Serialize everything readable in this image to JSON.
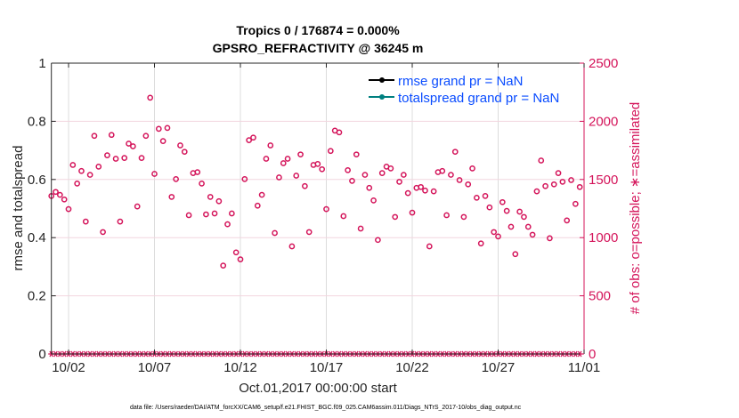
{
  "chart_data": {
    "type": "scatter",
    "title": [
      "Tropics 0 / 176874 = 0.000%",
      "GPSRO_REFRACTIVITY @ 36245 m"
    ],
    "xlabel": "Oct.01,2017 00:00:00 start",
    "ylabel": "rmse and totalspread",
    "y2label": "# of obs: o=possible; ∗=assimilated",
    "xlim_day_of_october": [
      1,
      32
    ],
    "ylim": [
      0,
      1
    ],
    "y2lim": [
      0,
      2500
    ],
    "xticks": [
      {
        "day": 2,
        "label": "10/02"
      },
      {
        "day": 7,
        "label": "10/07"
      },
      {
        "day": 12,
        "label": "10/12"
      },
      {
        "day": 17,
        "label": "10/17"
      },
      {
        "day": 22,
        "label": "10/22"
      },
      {
        "day": 27,
        "label": "10/27"
      },
      {
        "day": 32,
        "label": "11/01"
      }
    ],
    "yticks": [
      "0",
      "0.2",
      "0.4",
      "0.6",
      "0.8",
      "1"
    ],
    "y2ticks": [
      "0",
      "500",
      "1000",
      "1500",
      "2000",
      "2500"
    ],
    "grid": true,
    "legend_placement": "top-right",
    "legend": [
      {
        "label": "rmse grand pr = NaN",
        "color": "#000000"
      },
      {
        "label": "totalspread grand pr = NaN",
        "color": "#008080"
      }
    ],
    "series": [
      {
        "name": "obs possible",
        "marker": "o",
        "axis": "right",
        "x_start_day": 1,
        "x_step_days": 0.25,
        "values": [
          1358,
          1393,
          1368,
          1328,
          1245,
          1625,
          1465,
          1573,
          1138,
          1540,
          1875,
          1610,
          1048,
          1708,
          1883,
          1678,
          1138,
          1685,
          1808,
          1785,
          1268,
          1685,
          1875,
          2203,
          1548,
          1935,
          1830,
          1943,
          1350,
          1503,
          1793,
          1738,
          1193,
          1555,
          1563,
          1465,
          1200,
          1350,
          1208,
          1313,
          760,
          1115,
          1208,
          873,
          813,
          1503,
          1838,
          1860,
          1275,
          1368,
          1678,
          1793,
          1040,
          1518,
          1640,
          1678,
          925,
          1533,
          1715,
          1443,
          1048,
          1625,
          1633,
          1588,
          1245,
          1745,
          1920,
          1905,
          1185,
          1580,
          1488,
          1715,
          1078,
          1540,
          1428,
          1320,
          980,
          1555,
          1610,
          1595,
          1178,
          1480,
          1540,
          1383,
          1215,
          1428,
          1435,
          1405,
          925,
          1398,
          1563,
          1573,
          1193,
          1540,
          1738,
          1495,
          1178,
          1458,
          1595,
          1343,
          950,
          1358,
          1260,
          1048,
          1010,
          1305,
          1230,
          1093,
          858,
          1223,
          1178,
          1093,
          1025,
          1398,
          1663,
          1443,
          995,
          1458,
          1555,
          1480,
          1148,
          1495,
          1290,
          1435
        ]
      },
      {
        "name": "obs assimilated",
        "marker": "*",
        "axis": "right",
        "x_start_day": 1,
        "x_step_days": 0.25,
        "constant_value": 0,
        "count": 124
      },
      {
        "name": "rmse",
        "axis": "left",
        "values": "NaN"
      },
      {
        "name": "totalspread",
        "axis": "left",
        "values": "NaN"
      }
    ],
    "colors": {
      "obs": "#d4145a",
      "legend_text": "#0a4cff",
      "rmse": "#000000",
      "totalspread": "#008080"
    }
  },
  "footer": "data file: /Users/raeder/DAI/ATM_forcXX/CAM6_setup/f.e21.FHIST_BGC.f09_025.CAM6assim.011/Diags_NTrS_2017-10/obs_diag_output.nc"
}
